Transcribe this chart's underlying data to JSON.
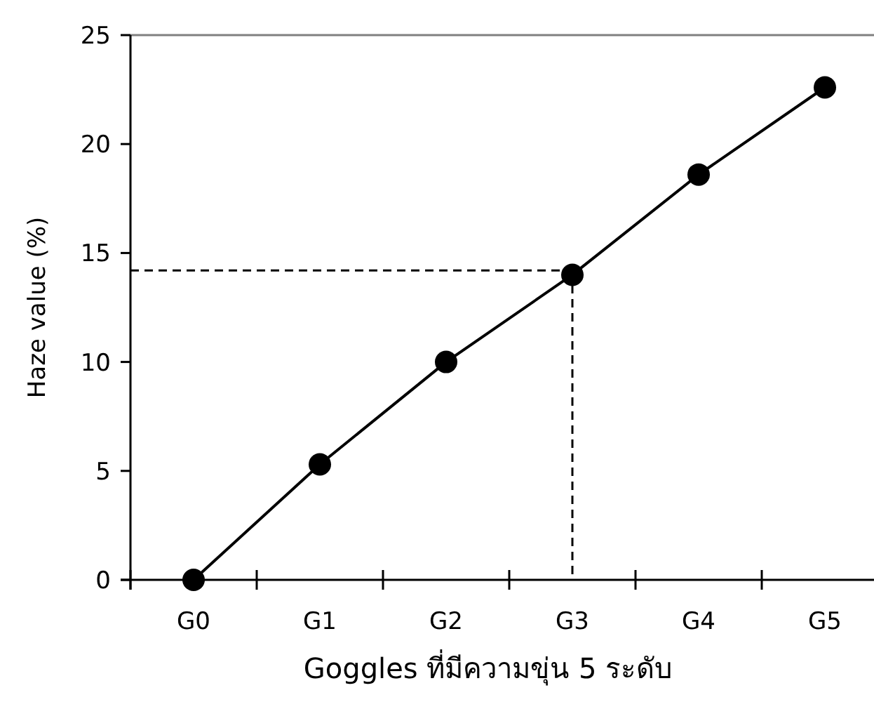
{
  "chart_data": {
    "type": "line",
    "xlabel": "Goggles ที่มีความขุ่น 5 ระดับ",
    "ylabel": "Haze value (%)",
    "categories": [
      "G0",
      "G1",
      "G2",
      "G3",
      "G4",
      "G5"
    ],
    "series": [
      {
        "color": "#000000",
        "values": [
          0,
          5.3,
          10,
          14,
          18.6,
          22.6
        ]
      }
    ],
    "ylim": [
      0,
      25
    ],
    "yticks": [
      0,
      5,
      10,
      15,
      20,
      25
    ],
    "marker": "circle",
    "line_style": "solid",
    "ref_lines": [
      {
        "axis": "y",
        "value": 14.2,
        "color": "#000000",
        "line_style": "dashed"
      },
      {
        "axis": "x",
        "value": "G3",
        "color": "#000000",
        "line_style": "dashed"
      }
    ]
  }
}
